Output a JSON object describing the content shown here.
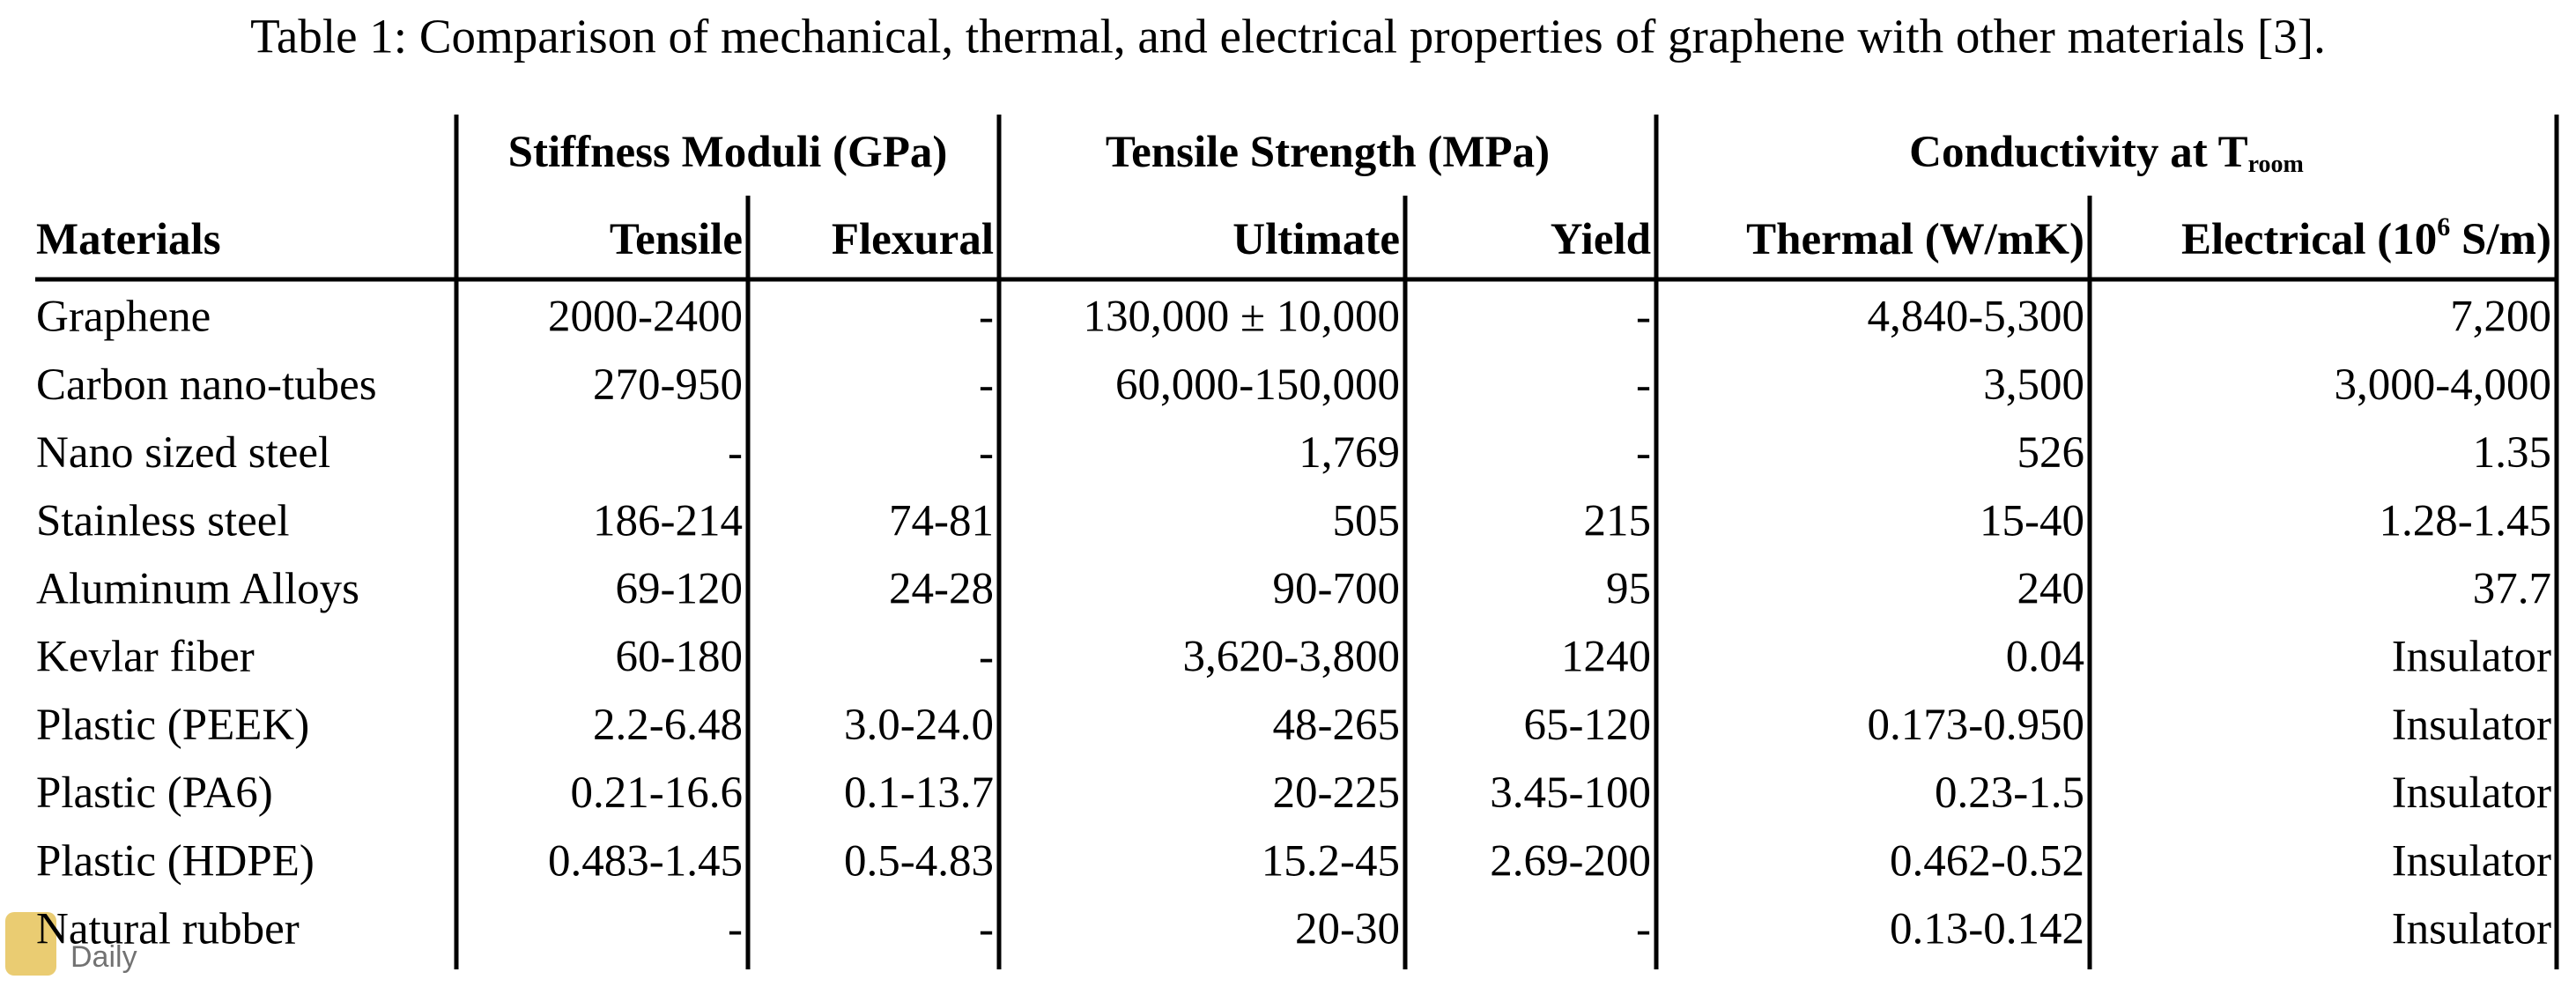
{
  "caption": "Table 1: Comparison of mechanical, thermal, and electrical properties of graphene with other materials [3].",
  "table": {
    "groups": [
      {
        "label": "Stiffness Moduli (GPa)"
      },
      {
        "label": "Tensile Strength (MPa)"
      },
      {
        "label": "Conductivity at T",
        "sub": "room"
      }
    ],
    "columns": [
      {
        "label": "Materials"
      },
      {
        "label": "Tensile"
      },
      {
        "label": "Flexural"
      },
      {
        "label": "Ultimate"
      },
      {
        "label": "Yield"
      },
      {
        "label": "Thermal (W/mK)"
      },
      {
        "label": "Electrical (10",
        "sup": "6",
        "after": " S/m)"
      }
    ],
    "rows": [
      [
        "Graphene",
        "2000-2400",
        "-",
        "130,000 ± 10,000",
        "-",
        "4,840-5,300",
        "7,200"
      ],
      [
        "Carbon nano-tubes",
        "270-950",
        "-",
        "60,000-150,000",
        "-",
        "3,500",
        "3,000-4,000"
      ],
      [
        "Nano sized steel",
        "-",
        "-",
        "1,769",
        "-",
        "526",
        "1.35"
      ],
      [
        "Stainless steel",
        "186-214",
        "74-81",
        "505",
        "215",
        "15-40",
        "1.28-1.45"
      ],
      [
        "Aluminum Alloys",
        "69-120",
        "24-28",
        "90-700",
        "95",
        "240",
        "37.7"
      ],
      [
        "Kevlar fiber",
        "60-180",
        "-",
        "3,620-3,800",
        "1240",
        "0.04",
        "Insulator"
      ],
      [
        "Plastic (PEEK)",
        "2.2-6.48",
        "3.0-24.0",
        "48-265",
        "65-120",
        "0.173-0.950",
        "Insulator"
      ],
      [
        "Plastic (PA6)",
        "0.21-16.6",
        "0.1-13.7",
        "20-225",
        "3.45-100",
        "0.23-1.5",
        "Insulator"
      ],
      [
        "Plastic (HDPE)",
        "0.483-1.45",
        "0.5-4.83",
        "15.2-45",
        "2.69-200",
        "0.462-0.52",
        "Insulator"
      ],
      [
        "Natural rubber",
        "-",
        "-",
        "20-30",
        "-",
        "0.13-0.142",
        "Insulator"
      ]
    ]
  },
  "watermark": "Daily"
}
